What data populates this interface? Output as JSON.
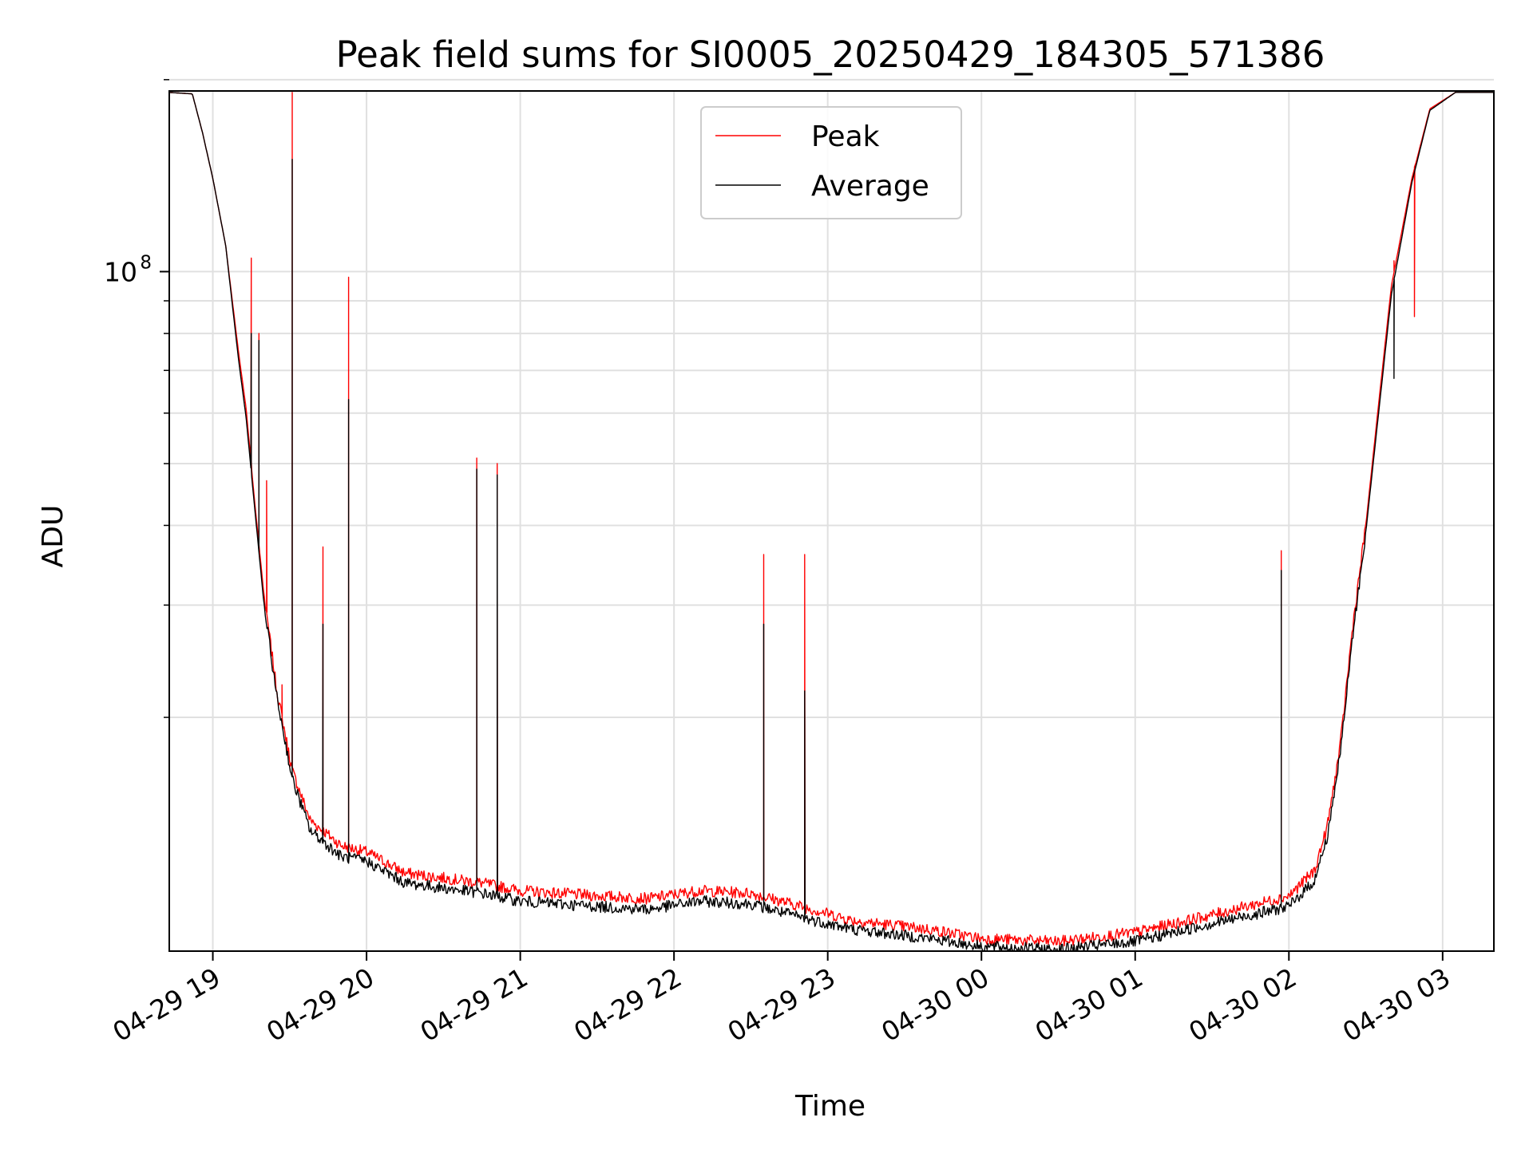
{
  "chart_data": {
    "type": "line",
    "title": "Peak field sums for SI0005_20250429_184305_571386",
    "xlabel": "Time",
    "ylabel": "ADU",
    "y_scale": "log",
    "ylim": [
      8600000,
      192000000
    ],
    "xlim": [
      "2025-04-29 18:43",
      "2025-04-30 03:20"
    ],
    "grid": true,
    "legend_position": "top-center",
    "x_ticks": [
      "04-29 19",
      "04-29 20",
      "04-29 21",
      "04-29 22",
      "04-29 23",
      "04-30 00",
      "04-30 01",
      "04-30 02",
      "04-30 03"
    ],
    "y_tick_major": "10",
    "y_tick_major_exp": "8",
    "y_tick_major_value": 100000000,
    "y_minor_ticks": [
      20000000,
      30000000,
      40000000,
      50000000,
      60000000,
      70000000,
      80000000,
      90000000,
      200000000
    ],
    "series": [
      {
        "name": "Peak",
        "color": "#ff0000",
        "points": [
          [
            "2025-04-29 18:43",
            191000000
          ],
          [
            "2025-04-29 18:52",
            190000000
          ],
          [
            "2025-04-29 18:56",
            165000000
          ],
          [
            "2025-04-29 19:00",
            140000000
          ],
          [
            "2025-04-29 19:05",
            110000000
          ],
          [
            "2025-04-29 19:10",
            75000000
          ],
          [
            "2025-04-29 19:13",
            61000000
          ],
          [
            "2025-04-29 19:16",
            45000000
          ],
          [
            "2025-04-29 19:20",
            31000000
          ],
          [
            "2025-04-29 19:25",
            22000000
          ],
          [
            "2025-04-29 19:31",
            16500000
          ],
          [
            "2025-04-29 19:38",
            13800000
          ],
          [
            "2025-04-29 19:50",
            12600000
          ],
          [
            "2025-04-29 20:00",
            12300000
          ],
          [
            "2025-04-29 20:15",
            11400000
          ],
          [
            "2025-04-29 20:30",
            11200000
          ],
          [
            "2025-04-29 20:45",
            11000000
          ],
          [
            "2025-04-29 21:00",
            10700000
          ],
          [
            "2025-04-29 21:30",
            10500000
          ],
          [
            "2025-04-29 21:50",
            10400000
          ],
          [
            "2025-04-29 22:10",
            10700000
          ],
          [
            "2025-04-29 22:30",
            10600000
          ],
          [
            "2025-04-29 22:50",
            10100000
          ],
          [
            "2025-04-29 23:10",
            9600000
          ],
          [
            "2025-04-29 23:40",
            9300000
          ],
          [
            "2025-04-30 00:00",
            9000000
          ],
          [
            "2025-04-30 00:30",
            8900000
          ],
          [
            "2025-04-30 01:00",
            9200000
          ],
          [
            "2025-04-30 01:30",
            9800000
          ],
          [
            "2025-04-30 02:00",
            10500000
          ],
          [
            "2025-04-30 02:10",
            11500000
          ],
          [
            "2025-04-30 02:15",
            13500000
          ],
          [
            "2025-04-30 02:20",
            18000000
          ],
          [
            "2025-04-30 02:25",
            28000000
          ],
          [
            "2025-04-30 02:30",
            40000000
          ],
          [
            "2025-04-30 02:35",
            62000000
          ],
          [
            "2025-04-30 02:40",
            95000000
          ],
          [
            "2025-04-30 02:48",
            140000000
          ],
          [
            "2025-04-30 02:55",
            180000000
          ],
          [
            "2025-04-30 03:05",
            191000000
          ],
          [
            "2025-04-30 03:20",
            191000000
          ]
        ],
        "spikes": [
          [
            "2025-04-29 19:15",
            105000000
          ],
          [
            "2025-04-29 19:18",
            80000000
          ],
          [
            "2025-04-29 19:21",
            47000000
          ],
          [
            "2025-04-29 19:27",
            22500000
          ],
          [
            "2025-04-29 19:31",
            191000000
          ],
          [
            "2025-04-29 19:43",
            37000000
          ],
          [
            "2025-04-29 19:53",
            98000000
          ],
          [
            "2025-04-29 20:43",
            51000000
          ],
          [
            "2025-04-29 20:51",
            50000000
          ],
          [
            "2025-04-29 22:35",
            36000000
          ],
          [
            "2025-04-29 22:51",
            36000000
          ],
          [
            "2025-04-30 01:57",
            36500000
          ],
          [
            "2025-04-30 02:41",
            104000000
          ],
          [
            "2025-04-30 02:49",
            85000000
          ]
        ]
      },
      {
        "name": "Average",
        "color": "#000000",
        "points": [
          [
            "2025-04-29 18:43",
            191000000
          ],
          [
            "2025-04-29 18:52",
            190000000
          ],
          [
            "2025-04-29 18:56",
            165000000
          ],
          [
            "2025-04-29 19:00",
            140000000
          ],
          [
            "2025-04-29 19:05",
            110000000
          ],
          [
            "2025-04-29 19:10",
            73000000
          ],
          [
            "2025-04-29 19:13",
            59000000
          ],
          [
            "2025-04-29 19:16",
            44000000
          ],
          [
            "2025-04-29 19:20",
            30000000
          ],
          [
            "2025-04-29 19:25",
            21500000
          ],
          [
            "2025-04-29 19:31",
            16000000
          ],
          [
            "2025-04-29 19:38",
            13300000
          ],
          [
            "2025-04-29 19:50",
            12100000
          ],
          [
            "2025-04-29 20:00",
            11900000
          ],
          [
            "2025-04-29 20:15",
            11000000
          ],
          [
            "2025-04-29 20:30",
            10800000
          ],
          [
            "2025-04-29 20:45",
            10600000
          ],
          [
            "2025-04-29 21:00",
            10300000
          ],
          [
            "2025-04-29 21:30",
            10100000
          ],
          [
            "2025-04-29 21:50",
            10000000
          ],
          [
            "2025-04-29 22:10",
            10300000
          ],
          [
            "2025-04-29 22:30",
            10200000
          ],
          [
            "2025-04-29 22:50",
            9700000
          ],
          [
            "2025-04-29 23:10",
            9300000
          ],
          [
            "2025-04-29 23:40",
            9000000
          ],
          [
            "2025-04-30 00:00",
            8750000
          ],
          [
            "2025-04-30 00:30",
            8650000
          ],
          [
            "2025-04-30 01:00",
            8900000
          ],
          [
            "2025-04-30 01:30",
            9500000
          ],
          [
            "2025-04-30 02:00",
            10100000
          ],
          [
            "2025-04-30 02:10",
            11100000
          ],
          [
            "2025-04-30 02:15",
            13000000
          ],
          [
            "2025-04-30 02:20",
            17500000
          ],
          [
            "2025-04-30 02:25",
            27000000
          ],
          [
            "2025-04-30 02:30",
            39000000
          ],
          [
            "2025-04-30 02:35",
            60000000
          ],
          [
            "2025-04-30 02:40",
            92000000
          ],
          [
            "2025-04-30 02:48",
            138000000
          ],
          [
            "2025-04-30 02:55",
            179000000
          ],
          [
            "2025-04-30 03:05",
            191000000
          ],
          [
            "2025-04-30 03:20",
            191000000
          ]
        ],
        "spikes": [
          [
            "2025-04-29 19:15",
            80000000
          ],
          [
            "2025-04-29 19:18",
            78000000
          ],
          [
            "2025-04-29 19:31",
            150000000
          ],
          [
            "2025-04-29 19:43",
            28000000
          ],
          [
            "2025-04-29 19:53",
            63000000
          ],
          [
            "2025-04-29 20:43",
            49000000
          ],
          [
            "2025-04-29 20:51",
            48000000
          ],
          [
            "2025-04-29 22:35",
            28000000
          ],
          [
            "2025-04-29 22:51",
            22000000
          ],
          [
            "2025-04-30 01:57",
            34000000
          ],
          [
            "2025-04-30 02:41",
            68000000
          ]
        ]
      }
    ]
  }
}
